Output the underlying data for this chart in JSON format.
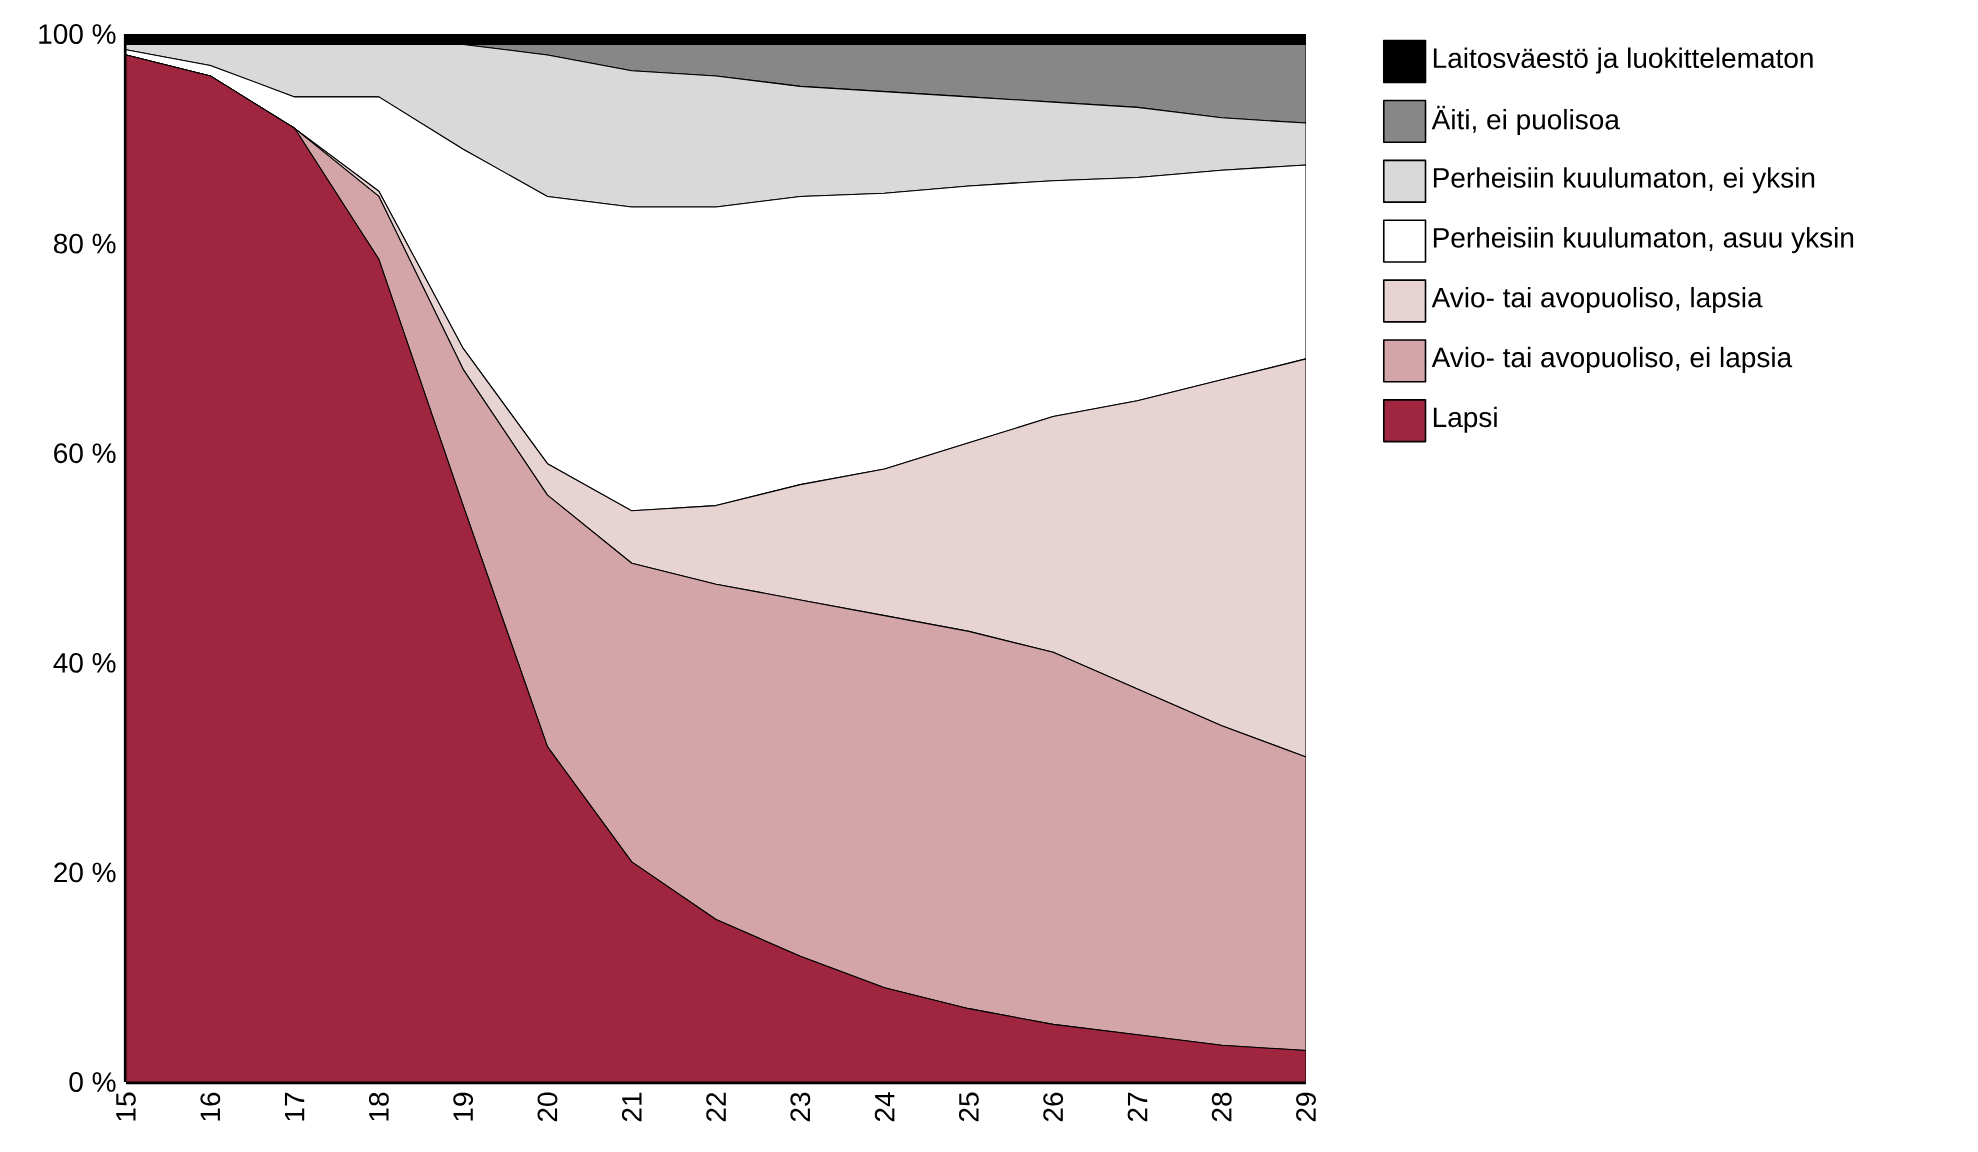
{
  "chart_data": {
    "type": "area",
    "stacked": true,
    "legend": "right",
    "grid": false,
    "categories": [
      "15",
      "16",
      "17",
      "18",
      "19",
      "20",
      "21",
      "22",
      "23",
      "24",
      "25",
      "26",
      "27",
      "28",
      "29"
    ],
    "ylim": [
      0,
      100
    ],
    "yticks": [
      {
        "value": 0,
        "label": "0 %"
      },
      {
        "value": 20,
        "label": "20 %"
      },
      {
        "value": 40,
        "label": "40 %"
      },
      {
        "value": 60,
        "label": "60 %"
      },
      {
        "value": 80,
        "label": "80 %"
      },
      {
        "value": 100,
        "label": "100 %"
      }
    ],
    "series": [
      {
        "name": "Lapsi",
        "color": "#a0263f",
        "values": [
          98,
          96,
          91,
          78.5,
          55,
          32,
          21,
          15.5,
          12,
          9,
          7,
          5.5,
          4.5,
          3.5,
          3
        ]
      },
      {
        "name": "Avio- tai avopuoliso, ei lapsia",
        "color": "#d4a5a8",
        "values": [
          0,
          0,
          0,
          6,
          13,
          24,
          28.5,
          32,
          34,
          35.5,
          36,
          35.5,
          33,
          30.5,
          28
        ]
      },
      {
        "name": "Avio- tai avopuoliso, lapsia",
        "color": "#e8d3d3",
        "values": [
          0,
          0,
          0,
          0.5,
          2,
          3,
          5,
          7.5,
          11,
          14,
          18,
          22.5,
          27.5,
          33,
          38
        ]
      },
      {
        "name": "Perheisiin kuulumaton, asuu yksin",
        "color": "#ffffff",
        "values": [
          0.5,
          1,
          3,
          9,
          19,
          25.5,
          29,
          28.5,
          27.5,
          26.3,
          24.5,
          22.5,
          21.3,
          20,
          18.5
        ]
      },
      {
        "name": "Perheisiin kuulumaton, ei yksin",
        "color": "#d9d9d9",
        "values": [
          0.5,
          2,
          5,
          5,
          10,
          13.5,
          13,
          12.5,
          10.5,
          9.7,
          8.5,
          7.5,
          6.7,
          5,
          4
        ]
      },
      {
        "name": "Äiti, ei puolisoa",
        "color": "#878787",
        "values": [
          0,
          0,
          0,
          0,
          0,
          1,
          2.5,
          3,
          4,
          4.5,
          5,
          5.5,
          6,
          7,
          7.5
        ]
      },
      {
        "name": "Laitosväestö ja luokittelematon",
        "color": "#000000",
        "values": [
          1,
          1,
          1,
          1,
          1,
          1,
          1,
          1,
          1,
          1,
          1,
          1,
          1,
          1,
          1
        ]
      }
    ]
  }
}
